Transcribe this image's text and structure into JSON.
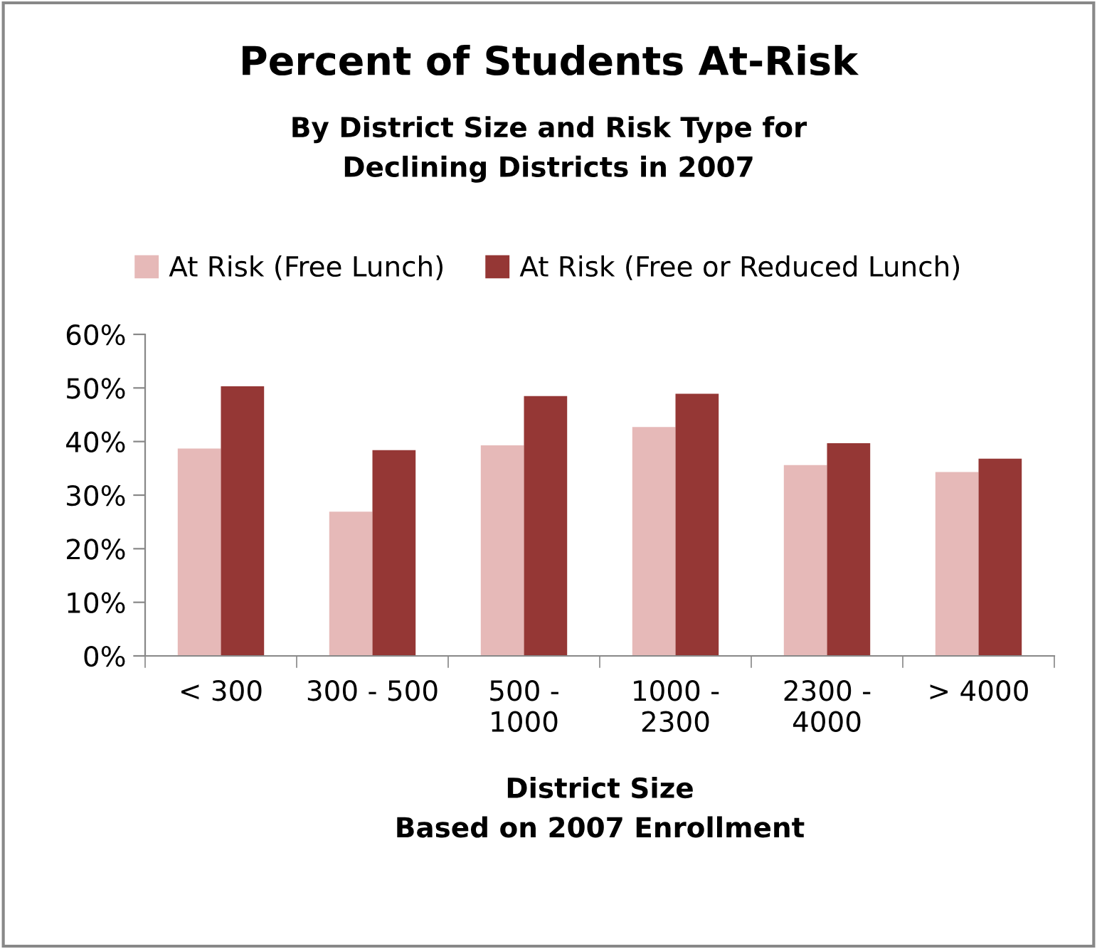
{
  "chart_data": {
    "type": "bar",
    "title": "Percent of Students At-Risk",
    "subtitle": "By District Size and Risk Type for\nDeclining Districts in 2007",
    "xlabel": "District Size\nBased on 2007 Enrollment",
    "categories": [
      "< 300",
      "300 - 500",
      "500 -\n1000",
      "1000 -\n2300",
      "2300 -\n4000",
      "> 4000"
    ],
    "series": [
      {
        "name": "At Risk (Free Lunch)",
        "color": "#e6b9b8",
        "values": [
          38.7,
          26.9,
          39.3,
          42.7,
          35.6,
          34.3
        ]
      },
      {
        "name": "At Risk (Free or Reduced Lunch)",
        "color": "#953735",
        "values": [
          50.3,
          38.4,
          48.5,
          48.9,
          39.7,
          36.8
        ]
      }
    ],
    "ylim": [
      0,
      60
    ],
    "yticks": [
      {
        "value": 0,
        "label": "0%"
      },
      {
        "value": 10,
        "label": "10%"
      },
      {
        "value": 20,
        "label": "20%"
      },
      {
        "value": 30,
        "label": "30%"
      },
      {
        "value": 40,
        "label": "40%"
      },
      {
        "value": 50,
        "label": "50%"
      },
      {
        "value": 60,
        "label": "60%"
      }
    ],
    "legend": "top",
    "grid": false
  }
}
